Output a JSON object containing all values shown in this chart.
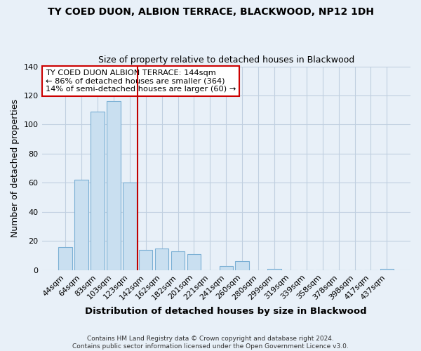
{
  "title": "TY COED DUON, ALBION TERRACE, BLACKWOOD, NP12 1DH",
  "subtitle": "Size of property relative to detached houses in Blackwood",
  "xlabel": "Distribution of detached houses by size in Blackwood",
  "ylabel": "Number of detached properties",
  "bar_labels": [
    "44sqm",
    "64sqm",
    "83sqm",
    "103sqm",
    "123sqm",
    "142sqm",
    "162sqm",
    "182sqm",
    "201sqm",
    "221sqm",
    "241sqm",
    "260sqm",
    "280sqm",
    "299sqm",
    "319sqm",
    "339sqm",
    "358sqm",
    "378sqm",
    "398sqm",
    "417sqm",
    "437sqm"
  ],
  "bar_values": [
    16,
    62,
    109,
    116,
    60,
    14,
    15,
    13,
    11,
    0,
    3,
    6,
    0,
    1,
    0,
    0,
    0,
    0,
    0,
    0,
    1
  ],
  "bar_color": "#c9dff0",
  "bar_edge_color": "#7aafd4",
  "vline_x": 4.5,
  "vline_color": "#c00000",
  "annotation_title": "TY COED DUON ALBION TERRACE: 144sqm",
  "annotation_line1": "← 86% of detached houses are smaller (364)",
  "annotation_line2": "14% of semi-detached houses are larger (60) →",
  "ylim": [
    0,
    140
  ],
  "yticks": [
    0,
    20,
    40,
    60,
    80,
    100,
    120,
    140
  ],
  "footer1": "Contains HM Land Registry data © Crown copyright and database right 2024.",
  "footer2": "Contains public sector information licensed under the Open Government Licence v3.0.",
  "background_color": "#e8f0f8",
  "plot_bg_color": "#e8f0f8",
  "grid_color": "#c0cfe0",
  "title_fontsize": 10,
  "subtitle_fontsize": 9
}
